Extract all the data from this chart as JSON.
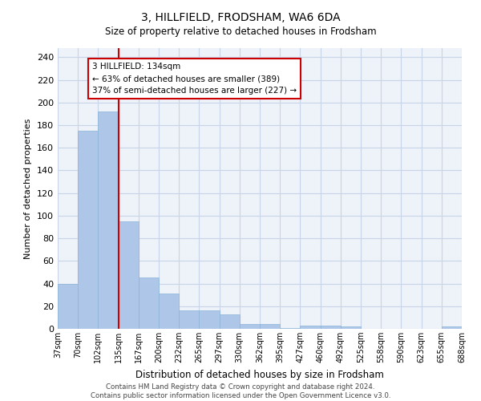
{
  "title": "3, HILLFIELD, FRODSHAM, WA6 6DA",
  "subtitle": "Size of property relative to detached houses in Frodsham",
  "xlabel": "Distribution of detached houses by size in Frodsham",
  "ylabel": "Number of detached properties",
  "bar_values": [
    40,
    175,
    192,
    95,
    45,
    31,
    16,
    16,
    13,
    4,
    4,
    1,
    3,
    3,
    2,
    0,
    0,
    0,
    0,
    2
  ],
  "bar_labels": [
    "37sqm",
    "70sqm",
    "102sqm",
    "135sqm",
    "167sqm",
    "200sqm",
    "232sqm",
    "265sqm",
    "297sqm",
    "330sqm",
    "362sqm",
    "395sqm",
    "427sqm",
    "460sqm",
    "492sqm",
    "525sqm",
    "558sqm",
    "590sqm",
    "623sqm",
    "655sqm",
    "688sqm"
  ],
  "bar_color": "#aec6e8",
  "bar_edge_color": "#8ab4d8",
  "highlight_line_color": "#cc0000",
  "annotation_text": "3 HILLFIELD: 134sqm\n← 63% of detached houses are smaller (389)\n37% of semi-detached houses are larger (227) →",
  "annotation_box_color": "#ffffff",
  "annotation_box_edge": "#cc0000",
  "ylim": [
    0,
    248
  ],
  "yticks": [
    0,
    20,
    40,
    60,
    80,
    100,
    120,
    140,
    160,
    180,
    200,
    220,
    240
  ],
  "grid_color": "#c8d4e8",
  "footer_line1": "Contains HM Land Registry data © Crown copyright and database right 2024.",
  "footer_line2": "Contains public sector information licensed under the Open Government Licence v3.0.",
  "fig_width": 6.0,
  "fig_height": 5.0,
  "dpi": 100
}
